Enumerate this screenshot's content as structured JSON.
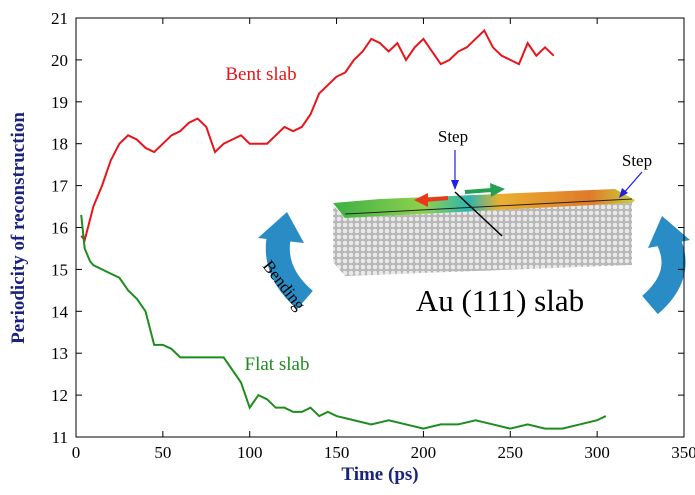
{
  "chart_data": {
    "type": "line",
    "xlabel": "Time (ps)",
    "ylabel": "Periodicity of reconstruction",
    "xlim": [
      0,
      350
    ],
    "xticks": [
      0,
      50,
      100,
      150,
      200,
      250,
      300,
      350
    ],
    "ylim": [
      11,
      21
    ],
    "yticks": [
      11,
      12,
      13,
      14,
      15,
      16,
      17,
      18,
      19,
      20,
      21
    ],
    "series": [
      {
        "name": "Bent slab",
        "color": "#e8141c",
        "x": [
          3,
          5,
          10,
          15,
          20,
          25,
          30,
          35,
          40,
          45,
          50,
          55,
          60,
          65,
          70,
          75,
          80,
          85,
          90,
          95,
          100,
          105,
          110,
          115,
          120,
          125,
          130,
          135,
          140,
          145,
          150,
          155,
          160,
          165,
          170,
          175,
          180,
          185,
          190,
          195,
          200,
          205,
          210,
          215,
          220,
          225,
          230,
          235,
          240,
          245,
          250,
          255,
          260,
          265,
          270,
          275
        ],
        "values": [
          15.8,
          15.7,
          16.5,
          17.0,
          17.6,
          18.0,
          18.2,
          18.1,
          17.9,
          17.8,
          18.0,
          18.2,
          18.3,
          18.5,
          18.6,
          18.4,
          17.8,
          18.0,
          18.1,
          18.2,
          18.0,
          18.0,
          18.0,
          18.2,
          18.4,
          18.3,
          18.4,
          18.7,
          19.2,
          19.4,
          19.6,
          19.7,
          20.0,
          20.2,
          20.5,
          20.4,
          20.2,
          20.4,
          20.0,
          20.3,
          20.5,
          20.2,
          19.9,
          20.0,
          20.2,
          20.3,
          20.5,
          20.7,
          20.3,
          20.1,
          20.0,
          19.9,
          20.4,
          20.1,
          20.3,
          20.1
        ]
      },
      {
        "name": "Flat slab",
        "color": "#1e8c1e",
        "x": [
          3,
          5,
          8,
          10,
          15,
          20,
          25,
          30,
          35,
          40,
          45,
          50,
          55,
          60,
          65,
          70,
          75,
          80,
          85,
          90,
          95,
          100,
          105,
          110,
          115,
          120,
          125,
          130,
          135,
          140,
          145,
          150,
          160,
          170,
          180,
          190,
          200,
          210,
          220,
          230,
          240,
          250,
          260,
          270,
          280,
          290,
          300,
          305
        ],
        "values": [
          16.3,
          15.5,
          15.2,
          15.1,
          15.0,
          14.9,
          14.8,
          14.5,
          14.3,
          14.0,
          13.2,
          13.2,
          13.1,
          12.9,
          12.9,
          12.9,
          12.9,
          12.9,
          12.9,
          12.6,
          12.3,
          11.7,
          12.0,
          11.9,
          11.7,
          11.7,
          11.6,
          11.6,
          11.7,
          11.5,
          11.6,
          11.5,
          11.4,
          11.3,
          11.4,
          11.3,
          11.2,
          11.3,
          11.3,
          11.4,
          11.3,
          11.2,
          11.3,
          11.2,
          11.2,
          11.3,
          11.4,
          11.5
        ]
      }
    ],
    "annotations": [
      "Step",
      "Step",
      "Bending",
      "Au (111) slab"
    ]
  }
}
